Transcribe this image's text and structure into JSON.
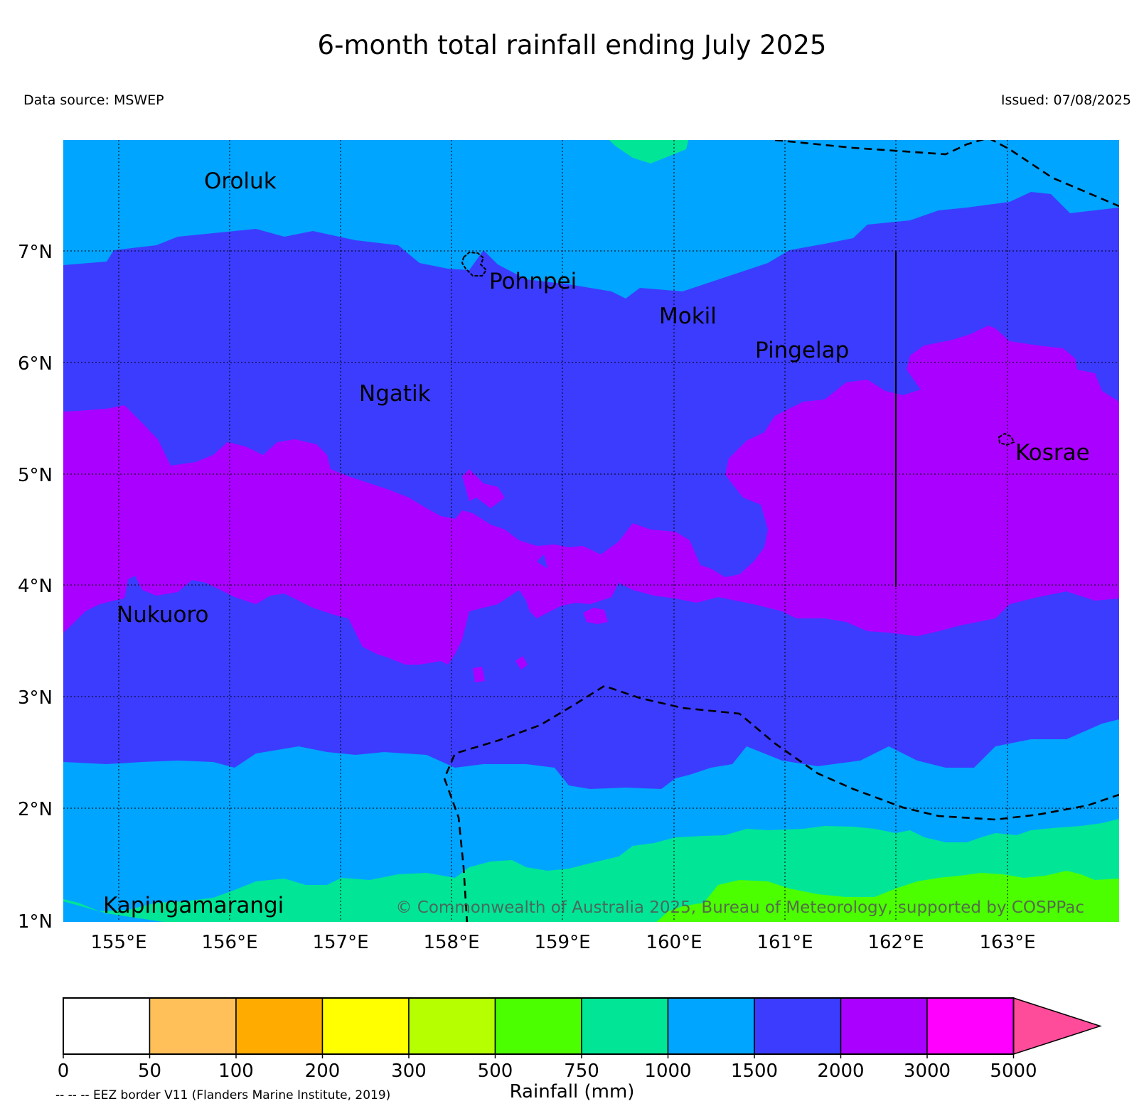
{
  "title": "6-month total rainfall ending July 2025",
  "data_source": "Data source: MSWEP",
  "issued": "Issued: 07/08/2025",
  "copyright": "© Commonwealth of Australia 2025, Bureau of Meteorology, supported by COSPPac",
  "map": {
    "lon_range": [
      154.5,
      164.0
    ],
    "lat_range": [
      1.0,
      8.0
    ],
    "lat_ticks": [
      "7°N",
      "6°N",
      "5°N",
      "4°N",
      "3°N",
      "2°N",
      "1°N"
    ],
    "lon_ticks": [
      "155°E",
      "156°E",
      "157°E",
      "158°E",
      "159°E",
      "160°E",
      "161°E",
      "162°E",
      "163°E"
    ],
    "grid": true,
    "places": [
      {
        "name": "Oroluk"
      },
      {
        "name": "Pohnpei"
      },
      {
        "name": "Mokil"
      },
      {
        "name": "Pingelap"
      },
      {
        "name": "Ngatik"
      },
      {
        "name": "Kosrae"
      },
      {
        "name": "Nukuoro"
      },
      {
        "name": "Kapingamarangi"
      }
    ]
  },
  "colorbar": {
    "label": "Rainfall (mm)",
    "ticks": [
      "0",
      "50",
      "100",
      "200",
      "300",
      "500",
      "750",
      "1000",
      "1500",
      "2000",
      "3000",
      "5000"
    ],
    "colors": [
      "#ffffff",
      "#ffc05a",
      "#ffab00",
      "#ffff00",
      "#b5ff00",
      "#4cff00",
      "#00e696",
      "#00a5ff",
      "#3c3cff",
      "#aa00ff",
      "#ff00ff",
      "#ff4c9a"
    ]
  },
  "eez_note": "-- -- -- EEZ border V11 (Flanders Marine Institute, 2019)"
}
